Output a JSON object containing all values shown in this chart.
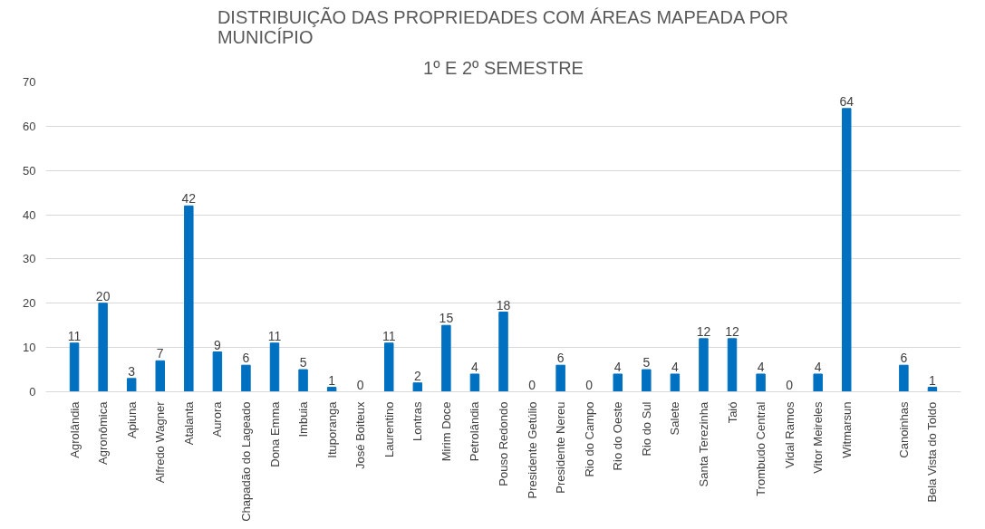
{
  "chart_data": {
    "type": "bar",
    "title": "DISTRIBUIÇÃO DAS PROPRIEDADES COM ÁREAS MAPEADA POR MUNICÍPIO",
    "subtitle": "1º E 2º SEMESTRE",
    "categories": [
      "Agrolândia",
      "Agronômica",
      "Apiuna",
      "Alfredo Wagner",
      "Atalanta",
      "Aurora",
      "Chapadão do Lageado",
      "Dona Emma",
      "Imbuia",
      "Ituporanga",
      "José Boiteux",
      "Laurentino",
      "Lontras",
      "Mirim Doce",
      "Petrolândia",
      "Pouso Redondo",
      "Presidente Getúlio",
      "Presidente Nereu",
      "Rio do Campo",
      "Rio do Oeste",
      "Rio do Sul",
      "Salete",
      "Santa Terezinha",
      "Taió",
      "Trombudo Central",
      "Vidal Ramos",
      "Vitor Meireles",
      "Witmarsun",
      null,
      "Canoinhas",
      "Bela Vista do Toldo"
    ],
    "values": [
      11,
      20,
      3,
      7,
      42,
      9,
      6,
      11,
      5,
      1,
      0,
      11,
      2,
      15,
      4,
      18,
      0,
      6,
      0,
      4,
      5,
      4,
      12,
      12,
      4,
      0,
      4,
      64,
      null,
      6,
      1
    ],
    "color": "#0070c0",
    "ylim": [
      0,
      70
    ],
    "yticks": [
      0,
      10,
      20,
      30,
      40,
      50,
      60,
      70
    ],
    "grid": "y",
    "data_labels": true
  }
}
